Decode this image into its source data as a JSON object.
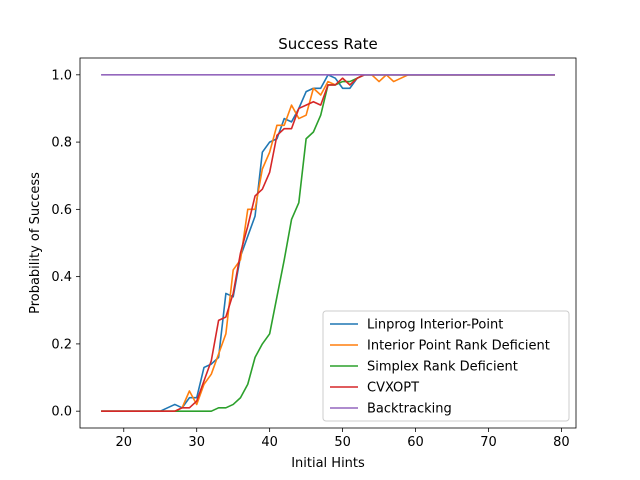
{
  "chart_data": {
    "type": "line",
    "title": "Success Rate",
    "xlabel": "Initial Hints",
    "ylabel": "Probability of Success",
    "xlim": [
      14,
      82
    ],
    "ylim": [
      -0.05,
      1.05
    ],
    "xticks": [
      20,
      30,
      40,
      50,
      60,
      70,
      80
    ],
    "yticks": [
      0.0,
      0.2,
      0.4,
      0.6,
      0.8,
      1.0
    ],
    "ytick_labels": [
      "0.0",
      "0.2",
      "0.4",
      "0.6",
      "0.8",
      "1.0"
    ],
    "legend_position": "lower-right",
    "grid": false,
    "series": [
      {
        "name": "Linprog Interior-Point",
        "color": "#1f77b4",
        "x": [
          17,
          18,
          19,
          20,
          21,
          22,
          23,
          24,
          25,
          26,
          27,
          28,
          29,
          30,
          31,
          32,
          33,
          34,
          35,
          36,
          37,
          38,
          39,
          40,
          41,
          42,
          43,
          44,
          45,
          46,
          47,
          48,
          49,
          50,
          51,
          52,
          53,
          54,
          55,
          56,
          57,
          58,
          59,
          60,
          79
        ],
        "y": [
          0,
          0,
          0,
          0,
          0,
          0,
          0,
          0,
          0,
          0.01,
          0.02,
          0.01,
          0.04,
          0.04,
          0.13,
          0.14,
          0.16,
          0.35,
          0.34,
          0.46,
          0.52,
          0.58,
          0.77,
          0.8,
          0.81,
          0.87,
          0.86,
          0.9,
          0.95,
          0.96,
          0.96,
          1.0,
          0.99,
          0.96,
          0.96,
          0.99,
          1.0,
          1.0,
          1.0,
          1.0,
          1.0,
          1.0,
          1.0,
          1.0,
          1.0
        ]
      },
      {
        "name": "Interior Point Rank Deficient",
        "color": "#ff7f0e",
        "x": [
          17,
          18,
          19,
          20,
          21,
          22,
          23,
          24,
          25,
          26,
          27,
          28,
          29,
          30,
          31,
          32,
          33,
          34,
          35,
          36,
          37,
          38,
          39,
          40,
          41,
          42,
          43,
          44,
          45,
          46,
          47,
          48,
          49,
          50,
          51,
          52,
          53,
          54,
          55,
          56,
          57,
          58,
          59,
          60,
          79
        ],
        "y": [
          0,
          0,
          0,
          0,
          0,
          0,
          0,
          0,
          0,
          0,
          0,
          0.01,
          0.06,
          0.02,
          0.08,
          0.11,
          0.17,
          0.23,
          0.42,
          0.45,
          0.6,
          0.6,
          0.72,
          0.77,
          0.85,
          0.85,
          0.91,
          0.87,
          0.88,
          0.96,
          0.94,
          0.98,
          0.97,
          0.99,
          0.97,
          0.99,
          1.0,
          1.0,
          0.98,
          1.0,
          0.98,
          0.99,
          1.0,
          1.0,
          1.0
        ]
      },
      {
        "name": "Simplex Rank Deficient",
        "color": "#2ca02c",
        "x": [
          17,
          18,
          19,
          20,
          21,
          22,
          23,
          24,
          25,
          26,
          27,
          28,
          29,
          30,
          31,
          32,
          33,
          34,
          35,
          36,
          37,
          38,
          39,
          40,
          41,
          42,
          43,
          44,
          45,
          46,
          47,
          48,
          49,
          50,
          51,
          52,
          53,
          54,
          55,
          56,
          57,
          58,
          59,
          60,
          79
        ],
        "y": [
          0,
          0,
          0,
          0,
          0,
          0,
          0,
          0,
          0,
          0,
          0,
          0,
          0,
          0,
          0,
          0,
          0.01,
          0.01,
          0.02,
          0.04,
          0.08,
          0.16,
          0.2,
          0.23,
          0.34,
          0.45,
          0.57,
          0.62,
          0.81,
          0.83,
          0.88,
          0.97,
          0.97,
          0.98,
          0.98,
          0.99,
          1.0,
          1.0,
          1.0,
          1.0,
          1.0,
          1.0,
          1.0,
          1.0,
          1.0
        ]
      },
      {
        "name": "CVXOPT",
        "color": "#d62728",
        "x": [
          17,
          18,
          19,
          20,
          21,
          22,
          23,
          24,
          25,
          26,
          27,
          28,
          29,
          30,
          31,
          32,
          33,
          34,
          35,
          36,
          37,
          38,
          39,
          40,
          41,
          42,
          43,
          44,
          45,
          46,
          47,
          48,
          49,
          50,
          51,
          52,
          53,
          54,
          55,
          56,
          57,
          58,
          59,
          60,
          79
        ],
        "y": [
          0,
          0,
          0,
          0,
          0,
          0,
          0,
          0,
          0,
          0,
          0,
          0.01,
          0.01,
          0.03,
          0.09,
          0.15,
          0.27,
          0.28,
          0.35,
          0.47,
          0.55,
          0.64,
          0.66,
          0.71,
          0.82,
          0.84,
          0.84,
          0.9,
          0.91,
          0.92,
          0.91,
          0.97,
          0.97,
          0.99,
          0.97,
          0.99,
          1.0,
          1.0,
          1.0,
          1.0,
          1.0,
          1.0,
          1.0,
          1.0,
          1.0
        ]
      },
      {
        "name": "Backtracking",
        "color": "#9467bd",
        "x": [
          17,
          79
        ],
        "y": [
          1.0,
          1.0
        ]
      }
    ]
  }
}
